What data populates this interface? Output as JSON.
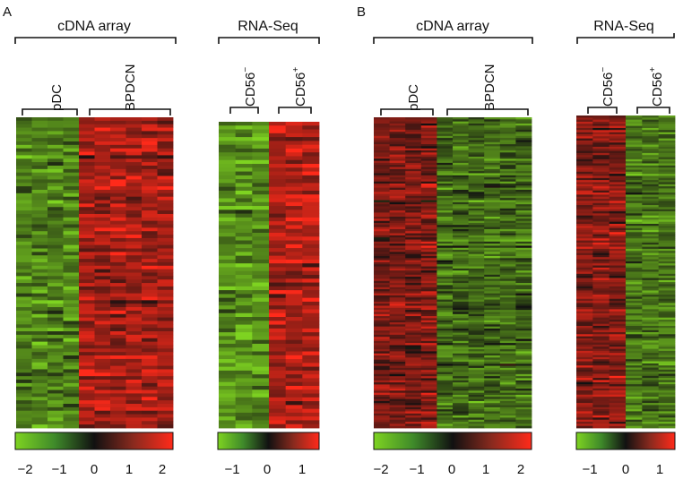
{
  "panels": [
    {
      "id": "A",
      "letter": "A",
      "array_group": {
        "title": "cDNA array",
        "subgroups": [
          "pDC",
          "BPDCN"
        ]
      },
      "seq_group": {
        "title": "RNA-Seq",
        "subgroups": [
          {
            "base": "CD56",
            "sup": "−"
          },
          {
            "base": "CD56",
            "sup": "+"
          }
        ]
      },
      "array_colorbar_ticks": [
        "−2",
        "−1",
        "0",
        "1",
        "2"
      ],
      "seq_colorbar_ticks": [
        "−1",
        "0",
        "1"
      ]
    },
    {
      "id": "B",
      "letter": "B",
      "array_group": {
        "title": "cDNA array",
        "subgroups": [
          "pDC",
          "BPDCN"
        ]
      },
      "seq_group": {
        "title": "RNA-Seq",
        "subgroups": [
          {
            "base": "CD56",
            "sup": "−"
          },
          {
            "base": "CD56",
            "sup": "+"
          }
        ]
      },
      "array_colorbar_ticks": [
        "−2",
        "−1",
        "0",
        "1",
        "2"
      ],
      "seq_colorbar_ticks": [
        "−1",
        "0",
        "1"
      ]
    }
  ],
  "colors": {
    "low": "#7ed321",
    "mid": "#111111",
    "high": "#ff2a1a"
  },
  "chart_data": {
    "type": "heatmap",
    "color_scale": {
      "low": -2,
      "mid": 0,
      "high": 2,
      "colors": [
        "green",
        "black",
        "red"
      ]
    },
    "heatmaps": [
      {
        "panel": "A",
        "platform": "cDNA array",
        "groups": [
          "pDC",
          "BPDCN"
        ],
        "columns_per_group": [
          4,
          6
        ],
        "pattern": {
          "pDC": "low",
          "BPDCN": "high"
        }
      },
      {
        "panel": "A",
        "platform": "RNA-Seq",
        "groups": [
          "CD56−",
          "CD56+"
        ],
        "columns_per_group": [
          3,
          3
        ],
        "pattern": {
          "CD56−": "low",
          "CD56+": "high"
        }
      },
      {
        "panel": "B",
        "platform": "cDNA array",
        "groups": [
          "pDC",
          "BPDCN"
        ],
        "columns_per_group": [
          4,
          6
        ],
        "pattern": {
          "pDC": "high",
          "BPDCN": "low"
        }
      },
      {
        "panel": "B",
        "platform": "RNA-Seq",
        "groups": [
          "CD56−",
          "CD56+"
        ],
        "columns_per_group": [
          3,
          3
        ],
        "pattern": {
          "CD56−": "high",
          "CD56+": "low"
        }
      }
    ]
  }
}
